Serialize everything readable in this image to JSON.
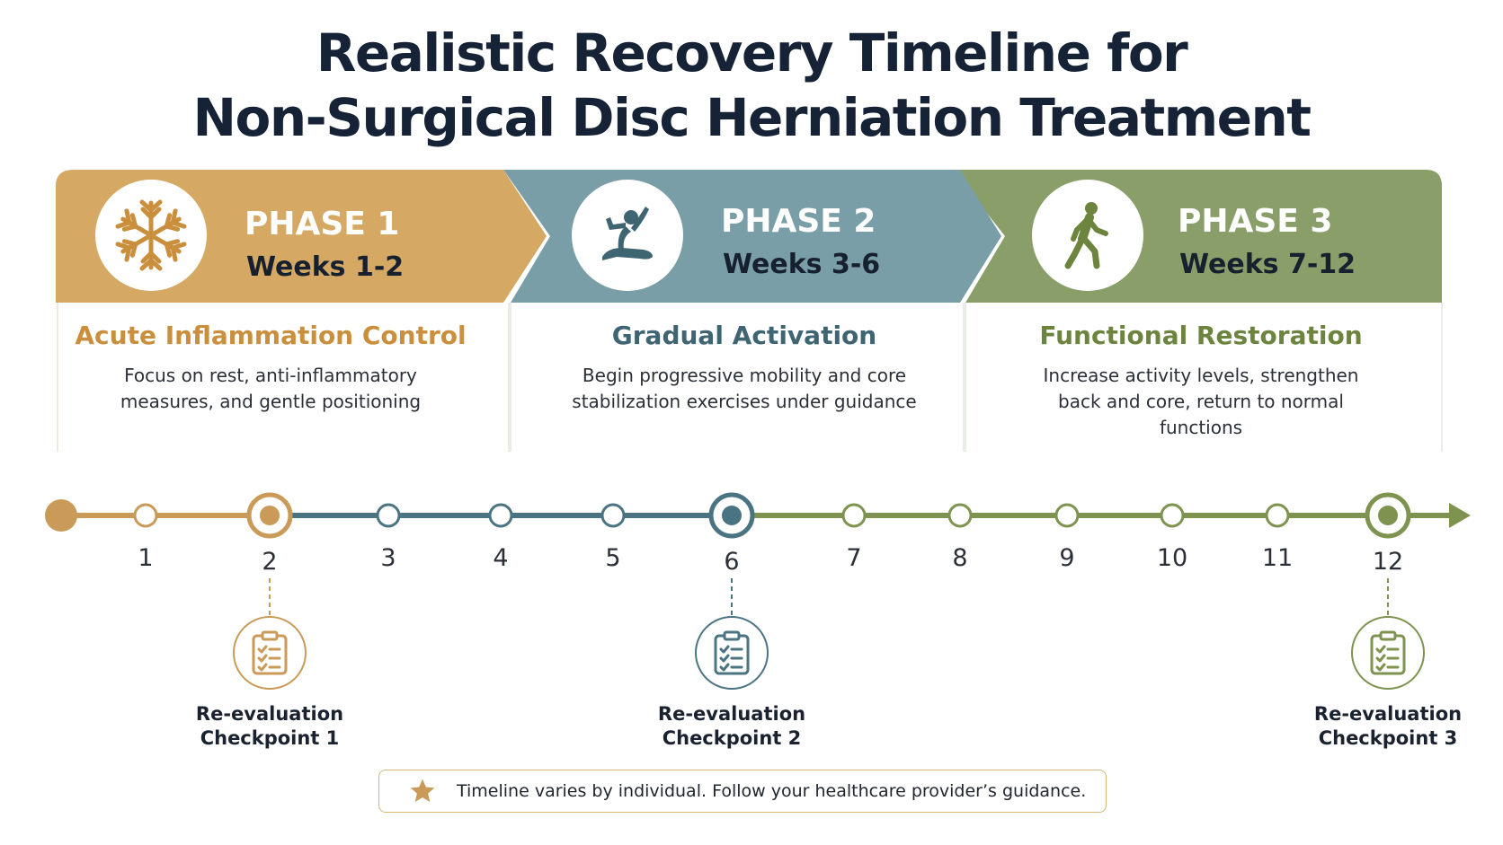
{
  "title": {
    "line1": "Realistic Recovery Timeline for",
    "line2": "Non-Surgical Disc Herniation Treatment"
  },
  "colors": {
    "phase1": "#d5a963",
    "phase1_text": "#c98f3c",
    "phase2": "#7a9ea7",
    "phase2_text": "#3f6573",
    "phase3": "#8a9e6a",
    "phase3_text": "#6d843f",
    "timeline_phase1": "#c99a58",
    "timeline_phase2": "#4b7483",
    "timeline_phase3": "#7e934f"
  },
  "phases": [
    {
      "label": "PHASE 1",
      "weeks": "Weeks 1-2",
      "icon": "snowflake-icon",
      "heading": "Acute Inflammation Control",
      "body_lines": [
        "Focus on rest, anti-inflammatory",
        "measures, and gentle positioning"
      ]
    },
    {
      "label": "PHASE 2",
      "weeks": "Weeks 3-6",
      "icon": "stretching-person-icon",
      "heading": "Gradual Activation",
      "body_lines": [
        "Begin progressive mobility and core",
        "stabilization exercises under guidance"
      ]
    },
    {
      "label": "PHASE 3",
      "weeks": "Weeks 7-12",
      "icon": "walking-person-icon",
      "heading": "Functional Restoration",
      "body_lines": [
        "Increase activity levels, strengthen",
        "back and core, return to normal",
        "functions"
      ]
    }
  ],
  "timeline": {
    "weeks": [
      "1",
      "2",
      "3",
      "4",
      "5",
      "6",
      "7",
      "8",
      "9",
      "10",
      "11",
      "12"
    ],
    "checkpoint_weeks": [
      2,
      6,
      12
    ]
  },
  "checkpoints": [
    {
      "week": 2,
      "label": "Re-evaluation\nCheckpoint 1",
      "icon": "clipboard-checklist-icon"
    },
    {
      "week": 6,
      "label": "Re-evaluation\nCheckpoint 2",
      "icon": "clipboard-checklist-icon"
    },
    {
      "week": 12,
      "label": "Re-evaluation\nCheckpoint 3",
      "icon": "clipboard-checklist-icon"
    }
  ],
  "disclaimer": {
    "icon": "star-icon",
    "text": "Timeline varies by individual. Follow your healthcare provider’s guidance."
  }
}
